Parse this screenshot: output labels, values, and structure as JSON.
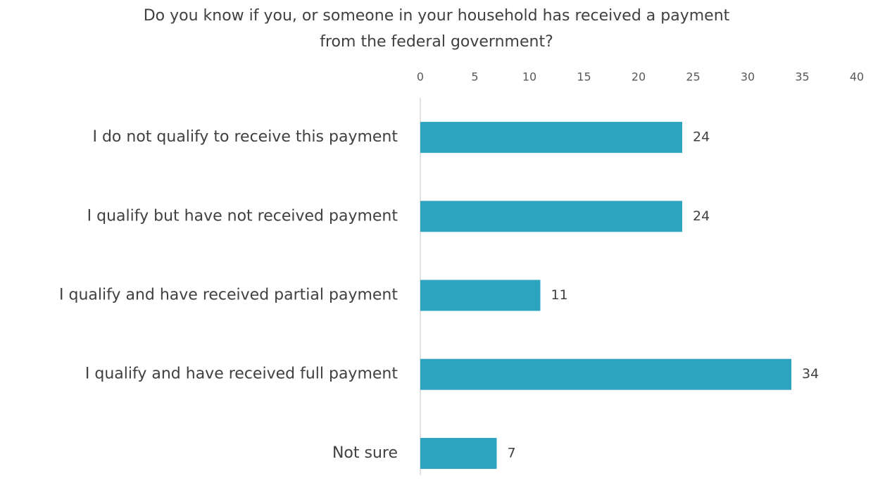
{
  "chart_data": {
    "type": "bar",
    "orientation": "horizontal",
    "title": "Do you know if you, or someone in your household has received a payment\nfrom the federal government?",
    "categories": [
      "I do not qualify to receive this payment",
      "I qualify but have not received payment",
      "I qualify and have received partial payment",
      "I qualify and have received full payment",
      "Not sure"
    ],
    "values": [
      24,
      24,
      11,
      34,
      7
    ],
    "color": "#2ea3c0",
    "xlim": [
      0,
      40
    ],
    "xticks": [
      0,
      5,
      10,
      15,
      20,
      25,
      30,
      35,
      40
    ],
    "grid": false
  }
}
